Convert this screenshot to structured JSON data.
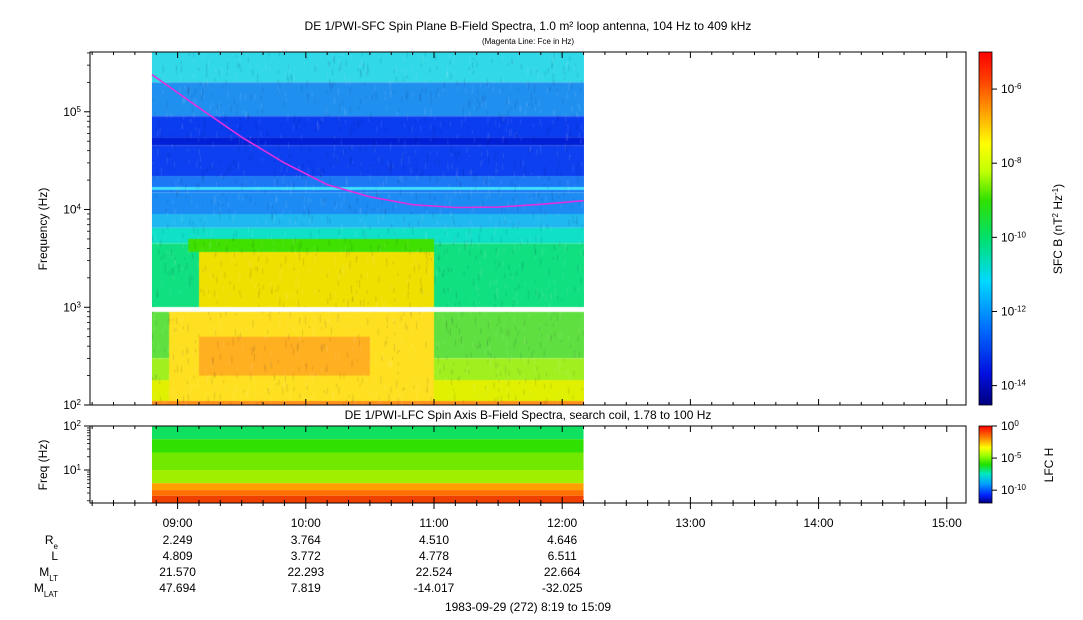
{
  "chart_data": [
    {
      "type": "heatmap",
      "title": "DE 1/PWI-SFC  Spin Plane B-Field Spectra, 1.0 m² loop antenna, 104 Hz to 409 kHz",
      "subtitle": "(Magenta Line: Fce in Hz)",
      "ylabel": "Frequency (Hz)",
      "yscale": "log",
      "ylim": [
        100,
        409000
      ],
      "yticks": [
        {
          "value": 100,
          "label_base": "10",
          "label_exp": "2"
        },
        {
          "value": 1000,
          "label_base": "10",
          "label_exp": "3"
        },
        {
          "value": 10000,
          "label_base": "10",
          "label_exp": "4"
        },
        {
          "value": 100000,
          "label_base": "10",
          "label_exp": "5"
        }
      ],
      "data_time_range": [
        "08:48",
        "12:10"
      ],
      "colorbar": {
        "label_main": "SFC B (nT",
        "label_sup1": "2",
        "label_mid": " Hz",
        "label_sup2": "-1",
        "label_end": ")",
        "scale": "log",
        "range": [
          3e-15,
          1e-05
        ],
        "ticks": [
          {
            "value": 1e-06,
            "label_base": "10",
            "label_exp": "-6"
          },
          {
            "value": 1e-08,
            "label_base": "10",
            "label_exp": "-8"
          },
          {
            "value": 1e-10,
            "label_base": "10",
            "label_exp": "-10"
          },
          {
            "value": 1e-12,
            "label_base": "10",
            "label_exp": "-12"
          },
          {
            "value": 1e-14,
            "label_base": "10",
            "label_exp": "-14"
          }
        ]
      },
      "fce_line": {
        "color": "#e030e0",
        "points": [
          {
            "t": "08:48",
            "f": 240000
          },
          {
            "t": "09:10",
            "f": 110000
          },
          {
            "t": "09:30",
            "f": 55000
          },
          {
            "t": "09:50",
            "f": 30000
          },
          {
            "t": "10:10",
            "f": 18000
          },
          {
            "t": "10:30",
            "f": 13500
          },
          {
            "t": "10:50",
            "f": 11200
          },
          {
            "t": "11:10",
            "f": 10500
          },
          {
            "t": "11:30",
            "f": 10600
          },
          {
            "t": "11:50",
            "f": 11300
          },
          {
            "t": "12:10",
            "f": 12300
          }
        ]
      }
    },
    {
      "type": "heatmap",
      "title": "DE 1/PWI-LFC  Spin Axis B-Field Spectra, search coil, 1.78 to 100 Hz",
      "ylabel": "Freq (Hz)",
      "yscale": "log",
      "ylim": [
        1.78,
        100
      ],
      "yticks": [
        {
          "value": 10,
          "label_base": "10",
          "label_exp": "1"
        },
        {
          "value": 100,
          "label_base": "10",
          "label_exp": "2"
        }
      ],
      "data_time_range": [
        "08:48",
        "12:10"
      ],
      "colorbar": {
        "label": "LFC H",
        "scale": "log",
        "range": [
          1e-12,
          1
        ],
        "ticks": [
          {
            "value": 1,
            "label_base": "10",
            "label_exp": "0"
          },
          {
            "value": 1e-05,
            "label_base": "10",
            "label_exp": "-5"
          },
          {
            "value": 1e-10,
            "label_base": "10",
            "label_exp": "-10"
          }
        ]
      }
    }
  ],
  "time_axis": {
    "range": [
      "08:19",
      "15:09"
    ],
    "major_ticks": [
      "09:00",
      "10:00",
      "11:00",
      "12:00",
      "13:00",
      "14:00",
      "15:00"
    ]
  },
  "ephemeris": {
    "rows": [
      {
        "label_main": "R",
        "label_sub": "e",
        "values": [
          "2.249",
          "3.764",
          "4.510",
          "4.646"
        ]
      },
      {
        "label_main": "L",
        "label_sub": "",
        "values": [
          "4.809",
          "3.772",
          "4.778",
          "6.511"
        ]
      },
      {
        "label_main": "M",
        "label_sub": "LT",
        "values": [
          "21.570",
          "22.293",
          "22.524",
          "22.664"
        ]
      },
      {
        "label_main": "M",
        "label_sub": "LAT",
        "values": [
          "47.694",
          "7.819",
          "-14.017",
          "-32.025"
        ]
      }
    ]
  },
  "footer": "1983-09-29 (272) 8:19 to 15:09"
}
